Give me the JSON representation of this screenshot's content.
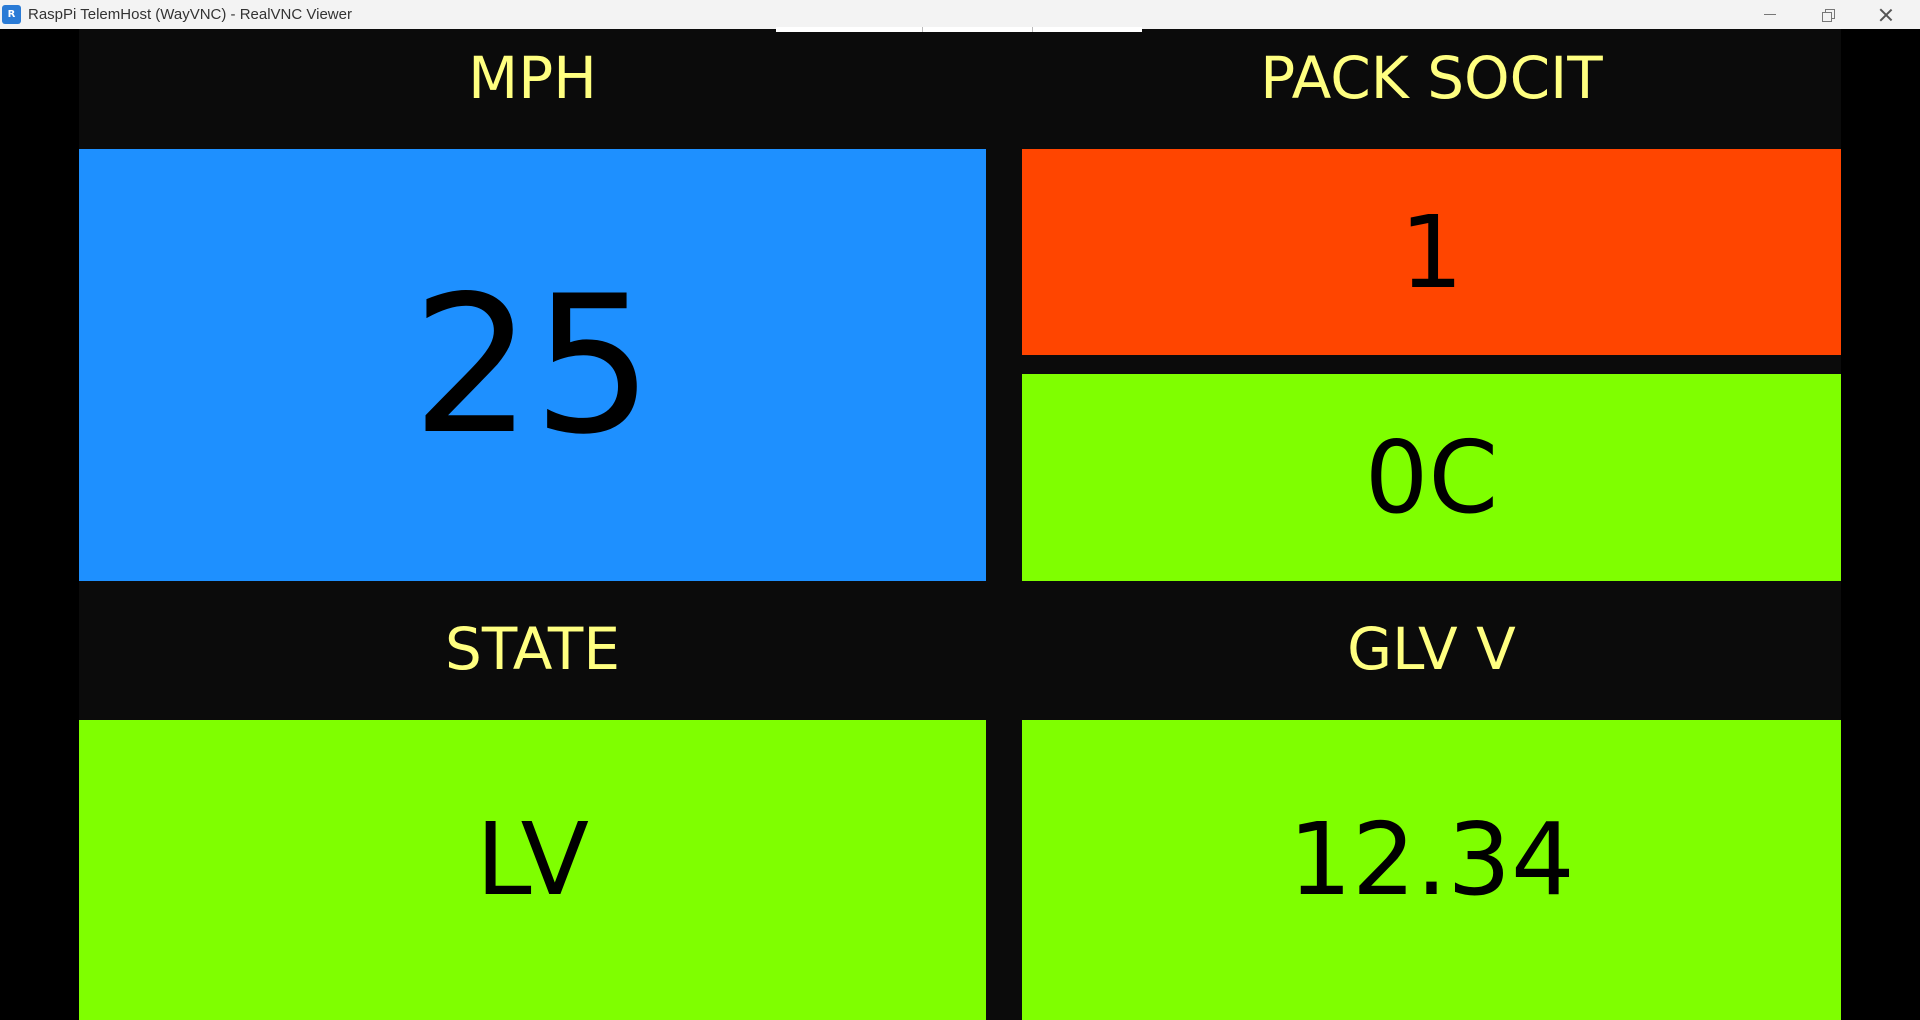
{
  "window": {
    "title": "RaspPi TelemHost (WayVNC) - RealVNC Viewer",
    "icon": "realvnc-icon",
    "icon_text": "R"
  },
  "dashboard": {
    "background": "#0b0b0b",
    "label_color": "#ffff80",
    "mph": {
      "label": "MPH",
      "value": "25",
      "color": "#1e90ff"
    },
    "pack_socit": {
      "label": "PACK SOCIT",
      "soc": {
        "value": "1",
        "color": "#ff4500"
      },
      "temp": {
        "value": "0C",
        "color": "#7fff00"
      }
    },
    "state": {
      "label": "STATE",
      "value": "LV",
      "color": "#7fff00"
    },
    "glv_v": {
      "label": "GLV V",
      "value": "12.34",
      "color": "#7fff00"
    }
  }
}
